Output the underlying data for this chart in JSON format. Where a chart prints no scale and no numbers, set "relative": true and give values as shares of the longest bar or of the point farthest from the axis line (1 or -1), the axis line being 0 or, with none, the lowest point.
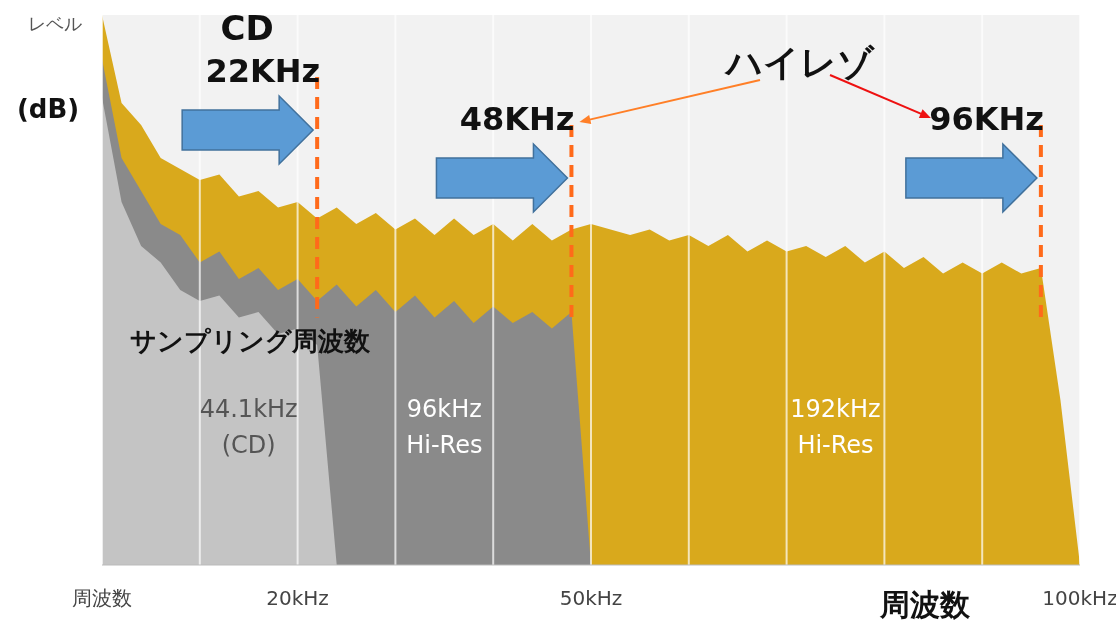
{
  "chart_data": {
    "type": "area",
    "relative": true,
    "ylabel": "レベル",
    "xlabel": "周波数",
    "xlim": [
      0,
      100
    ],
    "xticks": [
      {
        "value": 0,
        "label": "周波数"
      },
      {
        "value": 10,
        "label": null
      },
      {
        "value": 20,
        "label": "20kHz"
      },
      {
        "value": 30,
        "label": null
      },
      {
        "value": 40,
        "label": null
      },
      {
        "value": 50,
        "label": "50kHz"
      },
      {
        "value": 60,
        "label": null
      },
      {
        "value": 70,
        "label": null
      },
      {
        "value": 80,
        "label": null
      },
      {
        "value": 90,
        "label": null
      },
      {
        "value": 100,
        "label": "100kHz"
      }
    ],
    "grid": "x",
    "legend": false,
    "series": [
      {
        "name": "44.1kHz\n(CD)",
        "color": "#c4c4c4",
        "x": [
          0,
          2,
          4,
          6,
          8,
          10,
          12,
          14,
          16,
          18,
          20,
          22,
          24
        ],
        "values": [
          0.85,
          0.66,
          0.58,
          0.55,
          0.5,
          0.48,
          0.49,
          0.45,
          0.46,
          0.42,
          0.43,
          0.4,
          0
        ]
      },
      {
        "name": "96kHz\nHi-Res",
        "color": "#8a8a8a",
        "x": [
          0,
          2,
          4,
          6,
          8,
          10,
          12,
          14,
          16,
          18,
          20,
          22,
          24,
          26,
          28,
          30,
          32,
          34,
          36,
          38,
          40,
          42,
          44,
          46,
          48,
          50
        ],
        "values": [
          0.92,
          0.74,
          0.68,
          0.62,
          0.6,
          0.55,
          0.57,
          0.52,
          0.54,
          0.5,
          0.52,
          0.48,
          0.51,
          0.47,
          0.5,
          0.46,
          0.49,
          0.45,
          0.48,
          0.44,
          0.47,
          0.44,
          0.46,
          0.43,
          0.46,
          0
        ]
      },
      {
        "name": "192kHz\nHi-Res",
        "color": "#d9a91c",
        "x": [
          0,
          2,
          4,
          6,
          8,
          10,
          12,
          14,
          16,
          18,
          20,
          22,
          24,
          26,
          28,
          30,
          32,
          34,
          36,
          38,
          40,
          42,
          44,
          46,
          48,
          50,
          52,
          54,
          56,
          58,
          60,
          62,
          64,
          66,
          68,
          70,
          72,
          74,
          76,
          78,
          80,
          82,
          84,
          86,
          88,
          90,
          92,
          94,
          96,
          98,
          100
        ],
        "values": [
          1.0,
          0.84,
          0.8,
          0.74,
          0.72,
          0.7,
          0.71,
          0.67,
          0.68,
          0.65,
          0.66,
          0.63,
          0.65,
          0.62,
          0.64,
          0.61,
          0.63,
          0.6,
          0.63,
          0.6,
          0.62,
          0.59,
          0.62,
          0.59,
          0.61,
          0.62,
          0.61,
          0.6,
          0.61,
          0.59,
          0.6,
          0.58,
          0.6,
          0.57,
          0.59,
          0.57,
          0.58,
          0.56,
          0.58,
          0.55,
          0.57,
          0.54,
          0.56,
          0.53,
          0.55,
          0.53,
          0.55,
          0.53,
          0.54,
          0.3,
          0
        ]
      }
    ],
    "ref_lines": [
      {
        "axis": "x",
        "value": 22,
        "label": "22KHz",
        "color": "#ff6a1a",
        "line_style": "dashed"
      },
      {
        "axis": "x",
        "value": 48,
        "label": "48KHz",
        "color": "#ff6a1a",
        "line_style": "dashed"
      },
      {
        "axis": "x",
        "value": 96,
        "label": "96KHz",
        "color": "#ff6a1a",
        "line_style": "dashed"
      }
    ],
    "annotations": [
      "CD",
      "(dB)",
      "ハイレゾ",
      "サンプリング周波数"
    ]
  }
}
